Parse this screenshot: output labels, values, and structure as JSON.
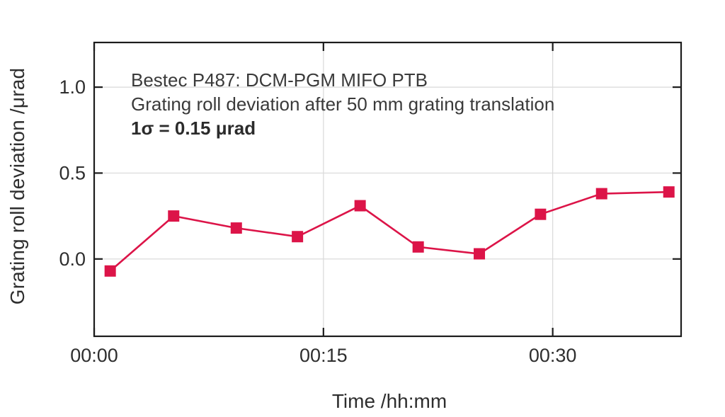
{
  "colors": {
    "series": "#dc1448",
    "axis": "#1c1c1c",
    "grid": "#d9d9d9",
    "text": "#2e2e2e",
    "annotation_text": "#3a3a3a",
    "background": "#ffffff"
  },
  "chart_data": {
    "type": "line",
    "title": "",
    "annotations": [
      "Bestec P487: DCM-PGM MIFO PTB",
      "Grating roll deviation after 50 mm grating translation",
      "1σ = 0.15 μrad"
    ],
    "xlabel": "Time /hh:mm",
    "ylabel": "Grating roll deviation /μrad",
    "marker": "square",
    "grid": true,
    "legend": "none",
    "x_minutes": [
      1.05,
      5.2,
      9.3,
      13.3,
      17.4,
      21.2,
      25.2,
      29.2,
      33.2,
      37.6
    ],
    "y_urad": [
      -0.07,
      0.25,
      0.18,
      0.13,
      0.31,
      0.07,
      0.03,
      0.26,
      0.38,
      0.39
    ],
    "x_ticks": {
      "values": [
        0,
        15,
        30
      ],
      "labels": [
        "00:00",
        "00:15",
        "00:30"
      ]
    },
    "y_ticks": {
      "values": [
        0.0,
        0.5,
        1.0
      ],
      "labels": [
        "0.0",
        "0.5",
        "1.0"
      ]
    },
    "xlim_minutes": [
      0,
      38.4
    ],
    "ylim": [
      -0.45,
      1.26
    ]
  }
}
